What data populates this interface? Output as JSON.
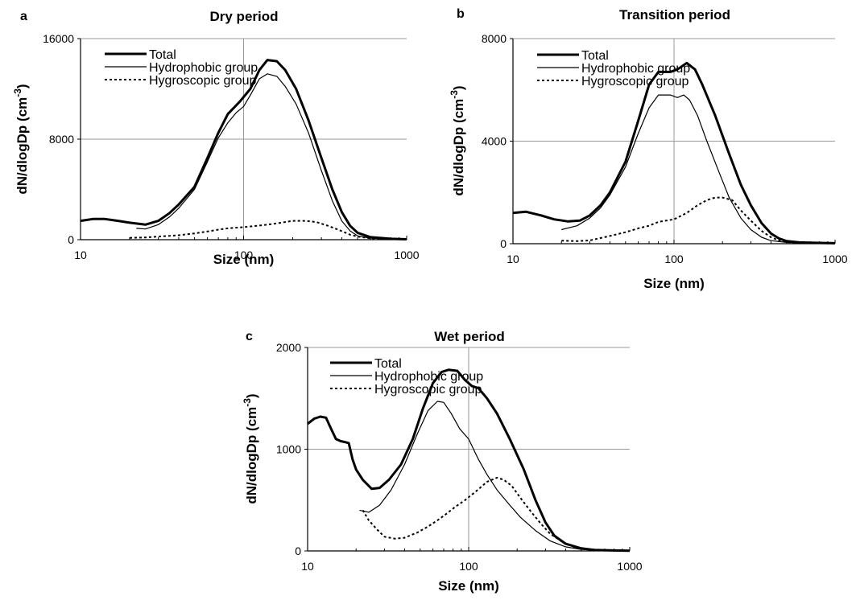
{
  "chart_data": [
    {
      "type": "line",
      "panel_label": "a",
      "title": "Dry period",
      "xlabel": "Size (nm)",
      "ylabel": "dN/dlogDp (cm",
      "ylabel_sup": "-3",
      "ylabel_close": ")",
      "xscale": "log",
      "xlim": [
        10,
        1000
      ],
      "ylim": [
        0,
        16000
      ],
      "xticks": [
        10,
        100,
        1000
      ],
      "yticks": [
        0,
        8000,
        16000
      ],
      "grid": true,
      "legend_position": "top-left",
      "series": [
        {
          "name": "Total",
          "style": "thick",
          "points": [
            [
              10,
              1500
            ],
            [
              12,
              1650
            ],
            [
              14,
              1650
            ],
            [
              17,
              1500
            ],
            [
              20,
              1350
            ],
            [
              25,
              1200
            ],
            [
              30,
              1500
            ],
            [
              35,
              2100
            ],
            [
              40,
              2800
            ],
            [
              50,
              4200
            ],
            [
              60,
              6500
            ],
            [
              70,
              8500
            ],
            [
              80,
              10000
            ],
            [
              95,
              11000
            ],
            [
              110,
              12000
            ],
            [
              125,
              13500
            ],
            [
              140,
              14300
            ],
            [
              160,
              14200
            ],
            [
              180,
              13500
            ],
            [
              210,
              12000
            ],
            [
              250,
              9500
            ],
            [
              300,
              6500
            ],
            [
              350,
              4000
            ],
            [
              400,
              2200
            ],
            [
              450,
              1100
            ],
            [
              500,
              550
            ],
            [
              600,
              200
            ],
            [
              800,
              70
            ],
            [
              1000,
              30
            ]
          ]
        },
        {
          "name": "Hydrophobic group",
          "style": "thin",
          "points": [
            [
              22,
              900
            ],
            [
              25,
              850
            ],
            [
              30,
              1200
            ],
            [
              35,
              1800
            ],
            [
              40,
              2500
            ],
            [
              50,
              4000
            ],
            [
              60,
              6200
            ],
            [
              70,
              8100
            ],
            [
              80,
              9300
            ],
            [
              90,
              10100
            ],
            [
              100,
              10600
            ],
            [
              110,
              11500
            ],
            [
              125,
              12800
            ],
            [
              140,
              13200
            ],
            [
              160,
              13000
            ],
            [
              180,
              12200
            ],
            [
              210,
              10800
            ],
            [
              250,
              8500
            ],
            [
              300,
              5500
            ],
            [
              350,
              3100
            ],
            [
              400,
              1500
            ],
            [
              450,
              700
            ],
            [
              500,
              300
            ],
            [
              600,
              120
            ],
            [
              800,
              50
            ],
            [
              1000,
              20
            ]
          ]
        },
        {
          "name": "Hygroscopic group",
          "style": "dotted",
          "points": [
            [
              20,
              150
            ],
            [
              25,
              180
            ],
            [
              30,
              250
            ],
            [
              40,
              350
            ],
            [
              50,
              500
            ],
            [
              60,
              650
            ],
            [
              70,
              800
            ],
            [
              80,
              900
            ],
            [
              100,
              1000
            ],
            [
              120,
              1100
            ],
            [
              140,
              1200
            ],
            [
              160,
              1300
            ],
            [
              200,
              1500
            ],
            [
              240,
              1500
            ],
            [
              280,
              1400
            ],
            [
              330,
              1100
            ],
            [
              380,
              800
            ],
            [
              450,
              400
            ],
            [
              500,
              250
            ],
            [
              600,
              100
            ],
            [
              800,
              40
            ],
            [
              1000,
              20
            ]
          ]
        }
      ]
    },
    {
      "type": "line",
      "panel_label": "b",
      "title": "Transition period",
      "xlabel": "Size (nm)",
      "ylabel": "dN/dlogDp (cm",
      "ylabel_sup": "-3",
      "ylabel_close": ")",
      "xscale": "log",
      "xlim": [
        10,
        1000
      ],
      "ylim": [
        0,
        8000
      ],
      "xticks": [
        10,
        100,
        1000
      ],
      "yticks": [
        0,
        4000,
        8000
      ],
      "grid": true,
      "legend_position": "top-left",
      "series": [
        {
          "name": "Total",
          "style": "thick",
          "points": [
            [
              10,
              1200
            ],
            [
              12,
              1250
            ],
            [
              15,
              1100
            ],
            [
              18,
              950
            ],
            [
              22,
              870
            ],
            [
              26,
              900
            ],
            [
              30,
              1100
            ],
            [
              35,
              1500
            ],
            [
              40,
              2000
            ],
            [
              50,
              3200
            ],
            [
              60,
              4800
            ],
            [
              70,
              6200
            ],
            [
              80,
              6700
            ],
            [
              95,
              6700
            ],
            [
              105,
              6800
            ],
            [
              120,
              7050
            ],
            [
              135,
              6800
            ],
            [
              150,
              6200
            ],
            [
              180,
              5000
            ],
            [
              220,
              3500
            ],
            [
              260,
              2300
            ],
            [
              300,
              1500
            ],
            [
              350,
              800
            ],
            [
              400,
              400
            ],
            [
              450,
              200
            ],
            [
              500,
              100
            ],
            [
              600,
              50
            ],
            [
              800,
              30
            ],
            [
              1000,
              20
            ]
          ]
        },
        {
          "name": "Hydrophobic group",
          "style": "thin",
          "points": [
            [
              20,
              550
            ],
            [
              25,
              700
            ],
            [
              30,
              1000
            ],
            [
              35,
              1400
            ],
            [
              40,
              1900
            ],
            [
              50,
              3000
            ],
            [
              60,
              4300
            ],
            [
              70,
              5300
            ],
            [
              80,
              5800
            ],
            [
              95,
              5800
            ],
            [
              105,
              5700
            ],
            [
              115,
              5800
            ],
            [
              125,
              5600
            ],
            [
              140,
              5000
            ],
            [
              160,
              4000
            ],
            [
              190,
              2800
            ],
            [
              220,
              1800
            ],
            [
              260,
              1000
            ],
            [
              300,
              550
            ],
            [
              350,
              250
            ],
            [
              400,
              120
            ],
            [
              500,
              50
            ],
            [
              700,
              20
            ],
            [
              1000,
              10
            ]
          ]
        },
        {
          "name": "Hygroscopic group",
          "style": "dotted",
          "points": [
            [
              20,
              120
            ],
            [
              25,
              100
            ],
            [
              30,
              130
            ],
            [
              40,
              300
            ],
            [
              50,
              450
            ],
            [
              60,
              600
            ],
            [
              70,
              700
            ],
            [
              80,
              850
            ],
            [
              100,
              950
            ],
            [
              120,
              1200
            ],
            [
              140,
              1500
            ],
            [
              160,
              1700
            ],
            [
              180,
              1800
            ],
            [
              200,
              1800
            ],
            [
              230,
              1700
            ],
            [
              260,
              1300
            ],
            [
              300,
              900
            ],
            [
              350,
              500
            ],
            [
              400,
              250
            ],
            [
              450,
              120
            ],
            [
              500,
              60
            ],
            [
              600,
              30
            ],
            [
              800,
              20
            ],
            [
              1000,
              10
            ]
          ]
        }
      ]
    },
    {
      "type": "line",
      "panel_label": "c",
      "title": "Wet period",
      "xlabel": "Size (nm)",
      "ylabel": "dN/dlogDp (cm",
      "ylabel_sup": "-3",
      "ylabel_close": ")",
      "xscale": "log",
      "xlim": [
        10,
        1000
      ],
      "ylim": [
        0,
        2000
      ],
      "xticks": [
        10,
        100,
        1000
      ],
      "yticks": [
        0,
        1000,
        2000
      ],
      "grid": true,
      "legend_position": "top-left",
      "series": [
        {
          "name": "Total",
          "style": "thick",
          "points": [
            [
              10,
              1250
            ],
            [
              11,
              1300
            ],
            [
              12,
              1320
            ],
            [
              13,
              1310
            ],
            [
              14,
              1200
            ],
            [
              15,
              1100
            ],
            [
              16,
              1080
            ],
            [
              17,
              1070
            ],
            [
              18,
              1060
            ],
            [
              19,
              900
            ],
            [
              20,
              800
            ],
            [
              22,
              700
            ],
            [
              25,
              610
            ],
            [
              28,
              620
            ],
            [
              32,
              700
            ],
            [
              38,
              850
            ],
            [
              45,
              1100
            ],
            [
              52,
              1400
            ],
            [
              60,
              1650
            ],
            [
              68,
              1760
            ],
            [
              75,
              1780
            ],
            [
              85,
              1770
            ],
            [
              95,
              1680
            ],
            [
              105,
              1620
            ],
            [
              115,
              1600
            ],
            [
              130,
              1500
            ],
            [
              150,
              1350
            ],
            [
              180,
              1100
            ],
            [
              220,
              800
            ],
            [
              260,
              500
            ],
            [
              300,
              280
            ],
            [
              340,
              150
            ],
            [
              400,
              70
            ],
            [
              500,
              25
            ],
            [
              600,
              10
            ],
            [
              800,
              5
            ],
            [
              1000,
              2
            ]
          ]
        },
        {
          "name": "Hydrophobic group",
          "style": "thin",
          "points": [
            [
              21,
              400
            ],
            [
              24,
              380
            ],
            [
              28,
              450
            ],
            [
              33,
              600
            ],
            [
              40,
              850
            ],
            [
              48,
              1150
            ],
            [
              56,
              1380
            ],
            [
              64,
              1470
            ],
            [
              70,
              1460
            ],
            [
              78,
              1350
            ],
            [
              88,
              1200
            ],
            [
              100,
              1100
            ],
            [
              115,
              900
            ],
            [
              130,
              750
            ],
            [
              150,
              600
            ],
            [
              180,
              450
            ],
            [
              210,
              330
            ],
            [
              260,
              200
            ],
            [
              320,
              100
            ],
            [
              400,
              40
            ],
            [
              500,
              15
            ],
            [
              700,
              5
            ],
            [
              1000,
              2
            ]
          ]
        },
        {
          "name": "Hygroscopic group",
          "style": "dotted",
          "points": [
            [
              22,
              400
            ],
            [
              24,
              300
            ],
            [
              27,
              210
            ],
            [
              30,
              140
            ],
            [
              35,
              120
            ],
            [
              40,
              130
            ],
            [
              48,
              180
            ],
            [
              56,
              240
            ],
            [
              64,
              300
            ],
            [
              72,
              360
            ],
            [
              82,
              430
            ],
            [
              95,
              500
            ],
            [
              110,
              580
            ],
            [
              130,
              680
            ],
            [
              150,
              720
            ],
            [
              165,
              700
            ],
            [
              185,
              640
            ],
            [
              210,
              520
            ],
            [
              240,
              400
            ],
            [
              280,
              270
            ],
            [
              320,
              170
            ],
            [
              380,
              90
            ],
            [
              450,
              40
            ],
            [
              550,
              15
            ],
            [
              700,
              5
            ],
            [
              1000,
              2
            ]
          ]
        }
      ]
    }
  ]
}
